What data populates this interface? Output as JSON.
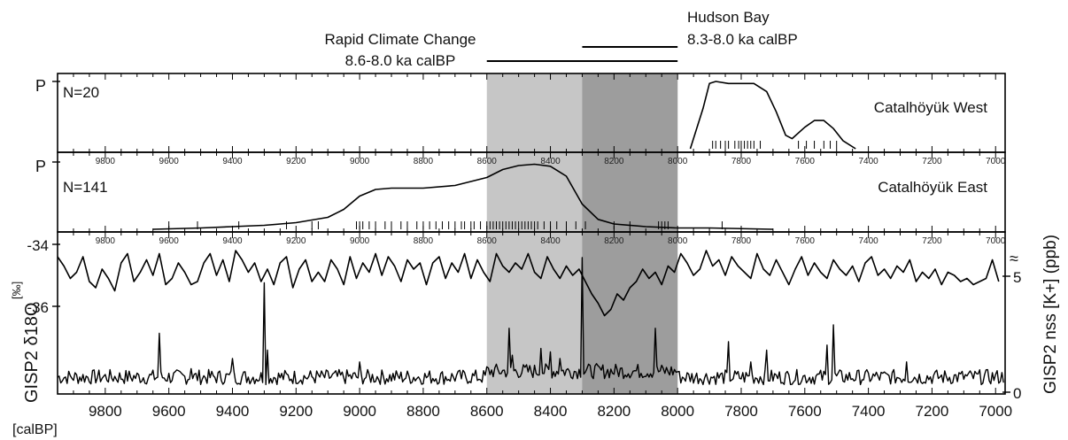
{
  "chart_data": {
    "type": "line",
    "x_unit_label": "[calBP]",
    "x_range": [
      9950,
      6970
    ],
    "x_ticks": [
      9800,
      9600,
      9400,
      9200,
      9000,
      8800,
      8600,
      8400,
      8200,
      8000,
      7800,
      7600,
      7400,
      7200,
      7000
    ],
    "events": [
      {
        "name": "Rapid Climate Change",
        "range_label": "8.6-8.0 ka calBP",
        "start": 8600,
        "end": 8000,
        "color": "#c6c6c6"
      },
      {
        "name": "Hudson Bay",
        "range_label": "8.3-8.0 ka calBP",
        "start": 8300,
        "end": 8000,
        "color": "#9d9d9d"
      }
    ],
    "panels": [
      {
        "site": "Catalhöyük West",
        "n_label": "N=20",
        "ylabel": "P",
        "density": [
          [
            7960,
            0
          ],
          [
            7920,
            0.6
          ],
          [
            7900,
            0.97
          ],
          [
            7880,
            1.0
          ],
          [
            7840,
            0.97
          ],
          [
            7800,
            0.97
          ],
          [
            7760,
            0.97
          ],
          [
            7720,
            0.85
          ],
          [
            7690,
            0.55
          ],
          [
            7660,
            0.2
          ],
          [
            7640,
            0.15
          ],
          [
            7600,
            0.32
          ],
          [
            7570,
            0.42
          ],
          [
            7540,
            0.42
          ],
          [
            7510,
            0.3
          ],
          [
            7480,
            0.12
          ],
          [
            7440,
            0
          ]
        ],
        "dates": [
          7890,
          7880,
          7865,
          7850,
          7840,
          7820,
          7808,
          7800,
          7790,
          7780,
          7770,
          7760,
          7740,
          7620,
          7595,
          7570,
          7540,
          7520,
          7500
        ]
      },
      {
        "site": "Catalhöyük East",
        "n_label": "N=141",
        "ylabel": "P",
        "density": [
          [
            9650,
            0
          ],
          [
            9500,
            0.02
          ],
          [
            9400,
            0.04
          ],
          [
            9300,
            0.06
          ],
          [
            9200,
            0.1
          ],
          [
            9100,
            0.18
          ],
          [
            9050,
            0.3
          ],
          [
            9000,
            0.5
          ],
          [
            8950,
            0.6
          ],
          [
            8900,
            0.62
          ],
          [
            8800,
            0.62
          ],
          [
            8700,
            0.66
          ],
          [
            8600,
            0.78
          ],
          [
            8550,
            0.9
          ],
          [
            8500,
            0.96
          ],
          [
            8450,
            0.98
          ],
          [
            8400,
            0.95
          ],
          [
            8350,
            0.8
          ],
          [
            8300,
            0.38
          ],
          [
            8250,
            0.15
          ],
          [
            8200,
            0.08
          ],
          [
            8100,
            0.04
          ],
          [
            8000,
            0.02
          ],
          [
            7900,
            0.02
          ],
          [
            7700,
            0
          ]
        ],
        "dates": [
          9600,
          9510,
          9380,
          9230,
          9150,
          9130,
          9010,
          9000,
          8990,
          8970,
          8950,
          8920,
          8900,
          8870,
          8850,
          8820,
          8800,
          8780,
          8760,
          8740,
          8720,
          8700,
          8680,
          8670,
          8650,
          8640,
          8620,
          8600,
          8590,
          8580,
          8570,
          8560,
          8550,
          8540,
          8530,
          8520,
          8510,
          8500,
          8490,
          8480,
          8470,
          8460,
          8450,
          8440,
          8420,
          8400,
          8380,
          8350,
          8320,
          8290,
          8200,
          8150,
          8060,
          8050,
          8040,
          8030,
          7860
        ]
      }
    ],
    "gisp2_d18o": {
      "name": "GISP2 δ18O",
      "unit_label": "[‰]",
      "y_ticks": [
        -34,
        -36
      ],
      "x": [
        9950,
        9930,
        9910,
        9890,
        9870,
        9850,
        9830,
        9810,
        9790,
        9770,
        9750,
        9730,
        9710,
        9690,
        9670,
        9650,
        9630,
        9610,
        9590,
        9570,
        9550,
        9530,
        9510,
        9490,
        9470,
        9450,
        9430,
        9410,
        9390,
        9370,
        9350,
        9330,
        9310,
        9290,
        9270,
        9250,
        9230,
        9210,
        9190,
        9170,
        9150,
        9130,
        9110,
        9090,
        9070,
        9050,
        9030,
        9010,
        8990,
        8970,
        8950,
        8930,
        8910,
        8890,
        8870,
        8850,
        8830,
        8810,
        8790,
        8770,
        8750,
        8730,
        8710,
        8690,
        8670,
        8650,
        8630,
        8610,
        8590,
        8570,
        8550,
        8530,
        8510,
        8490,
        8470,
        8450,
        8430,
        8410,
        8390,
        8370,
        8350,
        8330,
        8310,
        8290,
        8270,
        8250,
        8230,
        8210,
        8190,
        8170,
        8150,
        8130,
        8110,
        8090,
        8070,
        8050,
        8030,
        8010,
        7990,
        7970,
        7950,
        7930,
        7910,
        7890,
        7870,
        7850,
        7830,
        7810,
        7790,
        7770,
        7750,
        7730,
        7710,
        7690,
        7670,
        7650,
        7630,
        7610,
        7590,
        7570,
        7550,
        7530,
        7510,
        7490,
        7470,
        7450,
        7430,
        7410,
        7390,
        7370,
        7350,
        7330,
        7310,
        7290,
        7270,
        7250,
        7230,
        7210,
        7190,
        7170,
        7150,
        7130,
        7110,
        7090,
        7070,
        7050,
        7030,
        7010,
        6990
      ],
      "values": [
        -34.4,
        -34.7,
        -35.1,
        -34.9,
        -34.4,
        -35.2,
        -35.4,
        -34.8,
        -35.1,
        -35.5,
        -34.6,
        -34.3,
        -35.2,
        -34.9,
        -34.5,
        -35.0,
        -34.3,
        -35.3,
        -35.1,
        -34.6,
        -34.9,
        -35.3,
        -35.2,
        -34.6,
        -34.3,
        -35.0,
        -34.5,
        -35.2,
        -34.2,
        -34.5,
        -34.9,
        -34.6,
        -35.2,
        -34.8,
        -35.3,
        -34.6,
        -34.4,
        -35.4,
        -34.8,
        -34.5,
        -35.2,
        -34.9,
        -35.2,
        -34.5,
        -34.8,
        -35.3,
        -34.4,
        -35.1,
        -34.6,
        -34.9,
        -34.3,
        -35.0,
        -34.4,
        -34.7,
        -35.2,
        -34.5,
        -34.8,
        -34.6,
        -35.3,
        -34.6,
        -34.4,
        -35.1,
        -34.6,
        -34.9,
        -34.3,
        -35.1,
        -34.5,
        -34.9,
        -35.2,
        -34.3,
        -34.7,
        -34.9,
        -34.6,
        -34.8,
        -34.3,
        -34.9,
        -35.1,
        -34.4,
        -34.8,
        -35.1,
        -34.7,
        -35.0,
        -34.8,
        -35.2,
        -35.6,
        -35.9,
        -36.3,
        -36.1,
        -35.6,
        -35.8,
        -35.4,
        -35.2,
        -34.8,
        -35.1,
        -34.9,
        -35.3,
        -34.7,
        -34.9,
        -34.3,
        -34.6,
        -35.0,
        -34.8,
        -34.2,
        -34.7,
        -34.5,
        -35.0,
        -34.4,
        -34.7,
        -34.9,
        -35.1,
        -34.3,
        -34.8,
        -35.0,
        -34.5,
        -34.9,
        -35.3,
        -34.8,
        -34.4,
        -35.0,
        -34.6,
        -34.9,
        -35.1,
        -34.5,
        -34.8,
        -35.0,
        -34.7,
        -35.2,
        -34.6,
        -34.4,
        -35.0,
        -34.8,
        -35.1,
        -34.7,
        -34.9,
        -34.5,
        -35.2,
        -34.9,
        -35.1,
        -34.8,
        -35.3,
        -34.9,
        -35.0,
        -35.2,
        -35.1,
        -35.3,
        -35.2,
        -35.1,
        -34.5,
        -35.2
      ]
    },
    "gisp2_k": {
      "name": "GISP2 nss [K+] (ppb)",
      "y_ticks": [
        0,
        5
      ],
      "baseline": 0.9,
      "noise": 0.45,
      "step": 5,
      "spikes": [
        [
          9630,
          3.5
        ],
        [
          9530,
          1.4
        ],
        [
          9400,
          2.0
        ],
        [
          9300,
          6.5
        ],
        [
          9290,
          2.5
        ],
        [
          9000,
          1.8
        ],
        [
          8530,
          3.8
        ],
        [
          8520,
          2.2
        ],
        [
          8430,
          2.6
        ],
        [
          8400,
          2.4
        ],
        [
          8370,
          2.0
        ],
        [
          8300,
          8.0
        ],
        [
          8070,
          3.8
        ],
        [
          7840,
          3.0
        ],
        [
          7770,
          1.8
        ],
        [
          7720,
          2.5
        ],
        [
          7530,
          2.8
        ],
        [
          7510,
          4.0
        ],
        [
          7280,
          1.8
        ]
      ]
    }
  }
}
